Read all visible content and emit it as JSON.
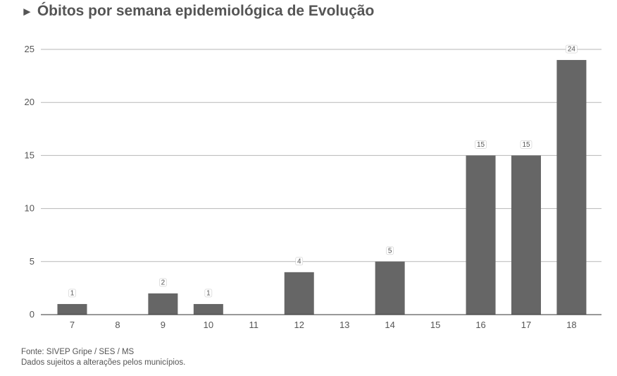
{
  "title_marker": "►",
  "title": "Óbitos por semana epidemiológica de Evolução",
  "footer": {
    "source": "Fonte: SIVEP Gripe / SES / MS",
    "note": "Dados sujeitos a alterações pelos municípios."
  },
  "colors": {
    "bar": "#666666",
    "grid": "#b7b7b7",
    "axis": "#333333",
    "text": "#555555"
  },
  "chart_data": {
    "type": "bar",
    "categories": [
      "7",
      "8",
      "9",
      "10",
      "11",
      "12",
      "13",
      "14",
      "15",
      "16",
      "17",
      "18"
    ],
    "values": [
      1,
      0,
      2,
      1,
      0,
      4,
      0,
      5,
      0,
      15,
      15,
      24
    ],
    "data_labels": [
      "1",
      "",
      "2",
      "1",
      "",
      "4",
      "",
      "5",
      "",
      "15",
      "15",
      "24"
    ],
    "yticks": [
      0,
      5,
      10,
      15,
      20,
      25
    ],
    "ylim": [
      0,
      25
    ],
    "grid": true,
    "legend": "none",
    "xlabel": "",
    "ylabel": ""
  }
}
